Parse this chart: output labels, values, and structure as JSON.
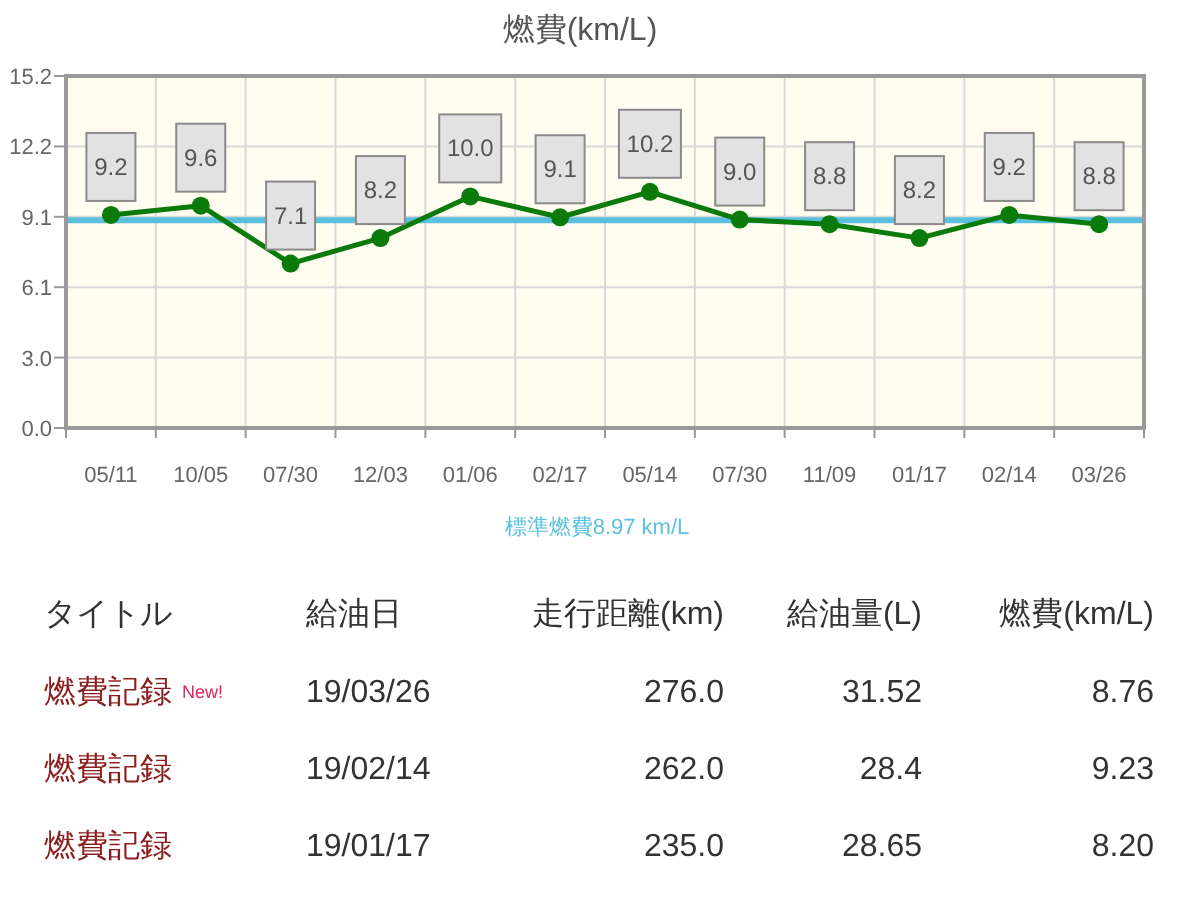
{
  "chart_data": [
    {
      "type": "line",
      "title": "燃費(km/L)",
      "categories": [
        "05/11",
        "10/05",
        "07/30",
        "12/03",
        "01/06",
        "02/17",
        "05/14",
        "07/30",
        "11/09",
        "01/17",
        "02/14",
        "03/26"
      ],
      "series": [
        {
          "color": "#0a7a0a",
          "values": [
            9.2,
            9.6,
            7.1,
            8.2,
            10.0,
            9.1,
            10.2,
            9.0,
            8.8,
            8.2,
            9.2,
            8.8
          ],
          "value_labels": [
            "9.2",
            "9.6",
            "7.1",
            "8.2",
            "10.0",
            "9.1",
            "10.2",
            "9.0",
            "8.8",
            "8.2",
            "9.2",
            "8.8"
          ]
        }
      ],
      "ylim": [
        0,
        15.2
      ],
      "yticks": [
        {
          "value": 0,
          "label": "0.0"
        },
        {
          "value": 3.04,
          "label": "3.0"
        },
        {
          "value": 6.08,
          "label": "6.1"
        },
        {
          "value": 9.12,
          "label": "9.1"
        },
        {
          "value": 12.16,
          "label": "12.2"
        },
        {
          "value": 15.2,
          "label": "15.2"
        }
      ],
      "grid": true,
      "marker": "circle",
      "ref_lines": [
        {
          "axis": "y",
          "value": 8.97,
          "label": "標準燃費8.97 km/L",
          "color": "#5bc0de"
        }
      ]
    },
    {
      "type": "other",
      "categories": [
        "タイトル",
        "給油日",
        "走行距離(km)",
        "給油量(L)",
        "燃費(km/L)"
      ],
      "cell_labels": [
        [
          "燃費記録",
          "19/03/26",
          "276.0",
          "31.52",
          "8.76"
        ],
        [
          "燃費記録",
          "19/02/14",
          "262.0",
          "28.4",
          "9.23"
        ],
        [
          "燃費記録",
          "19/01/17",
          "235.0",
          "28.65",
          "8.20"
        ]
      ],
      "annotations": [
        "New!"
      ]
    }
  ]
}
